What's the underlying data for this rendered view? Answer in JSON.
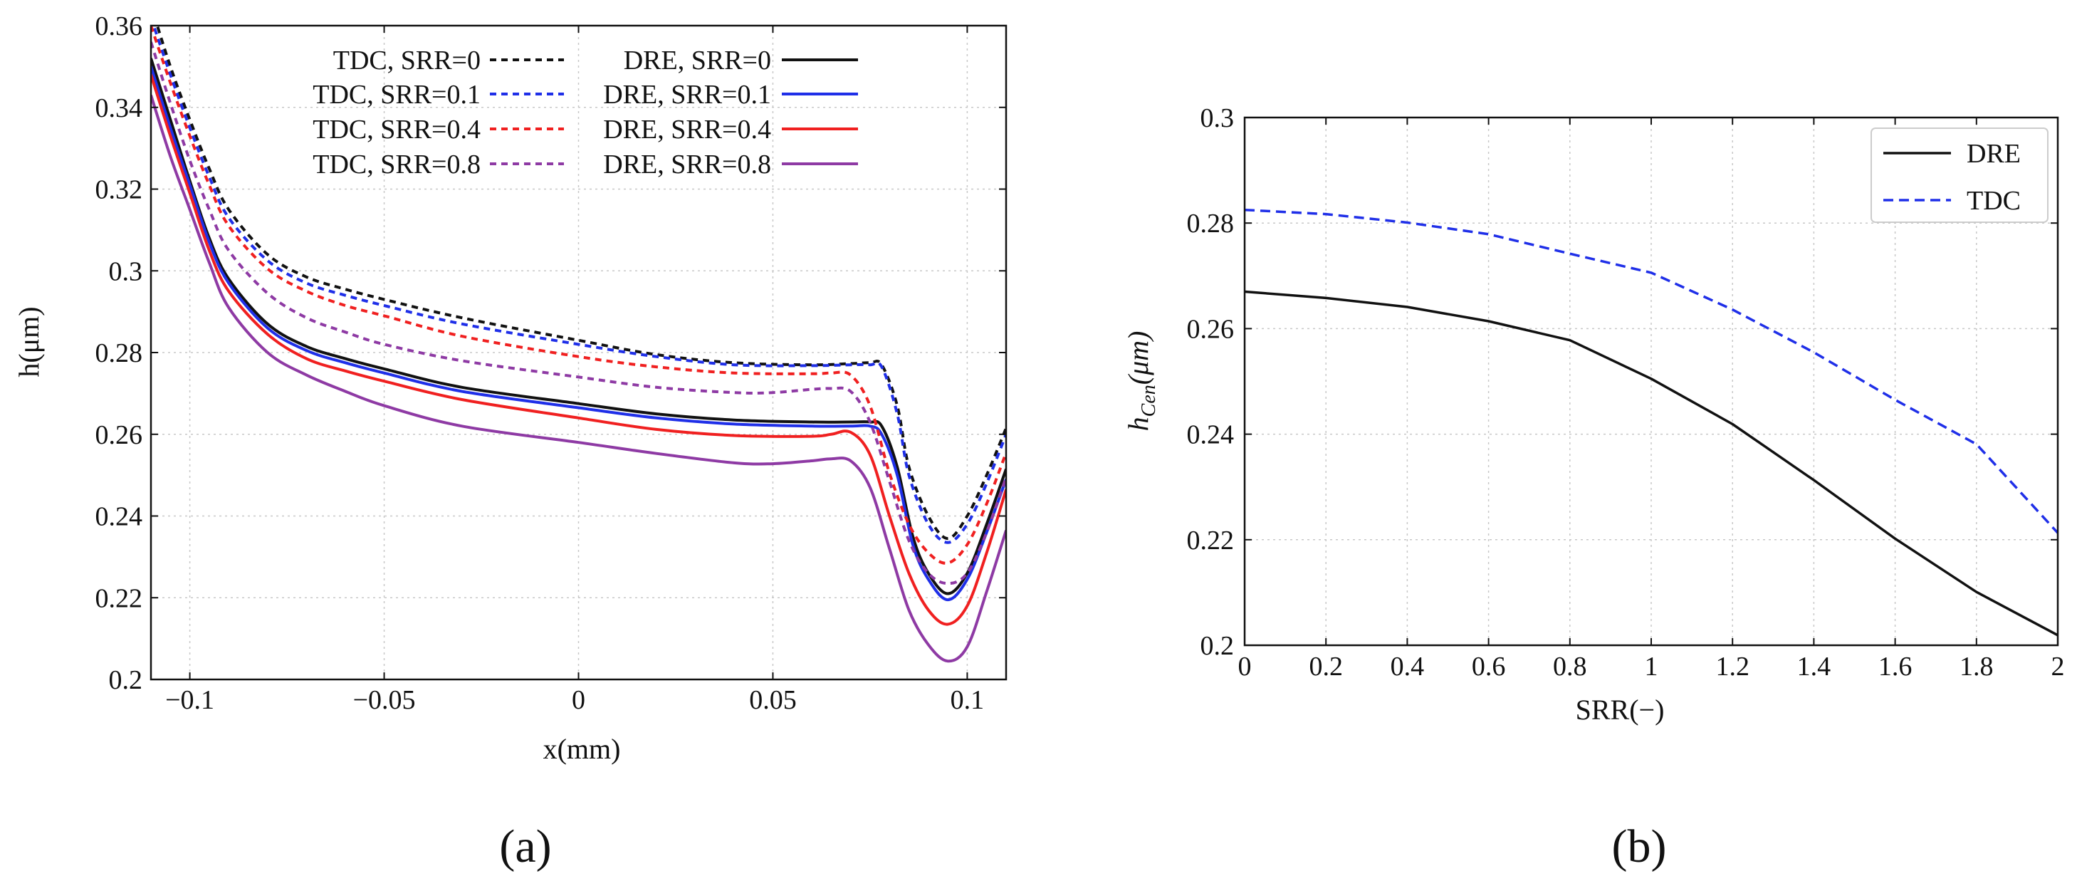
{
  "colors": {
    "black": "#111111",
    "blue": "#1f2fe8",
    "red": "#f02020",
    "purple": "#8e3aa4",
    "grid": "#c8c8c8"
  },
  "chart_data": [
    {
      "type": "line",
      "panel_label": "(a)",
      "title": "",
      "xlabel": "x(mm)",
      "ylabel": "h(μm)",
      "xlim": [
        -0.11,
        0.11
      ],
      "ylim": [
        0.2,
        0.36
      ],
      "xticks": [
        -0.1,
        -0.05,
        0,
        0.05,
        0.1
      ],
      "xtick_labels": [
        "−0.1",
        "−0.05",
        "0",
        "0.05",
        "0.1"
      ],
      "yticks": [
        0.2,
        0.22,
        0.24,
        0.26,
        0.28,
        0.3,
        0.32,
        0.34,
        0.36
      ],
      "ytick_labels": [
        "0.2",
        "0.22",
        "0.24",
        "0.26",
        "0.28",
        "0.3",
        "0.32",
        "0.34",
        "0.36"
      ],
      "grid": true,
      "legend_position": "top-right",
      "series": [
        {
          "name": "TDC, SRR=0",
          "color_key": "black",
          "dash": "dashed",
          "x": [
            -0.11,
            -0.105,
            -0.1,
            -0.095,
            -0.09,
            -0.08,
            -0.07,
            -0.06,
            -0.05,
            -0.03,
            0,
            0.02,
            0.04,
            0.06,
            0.07,
            0.075,
            0.078,
            0.082,
            0.085,
            0.09,
            0.095,
            0.1,
            0.105,
            0.11
          ],
          "y": [
            0.365,
            0.35,
            0.337,
            0.325,
            0.315,
            0.304,
            0.2985,
            0.2955,
            0.293,
            0.2885,
            0.283,
            0.2795,
            0.2775,
            0.277,
            0.2773,
            0.2775,
            0.277,
            0.267,
            0.252,
            0.24,
            0.2345,
            0.24,
            0.25,
            0.2615
          ]
        },
        {
          "name": "DRE, SRR=0",
          "color_key": "black",
          "dash": "solid",
          "x": [
            -0.11,
            -0.105,
            -0.1,
            -0.095,
            -0.09,
            -0.08,
            -0.07,
            -0.06,
            -0.05,
            -0.03,
            0,
            0.02,
            0.04,
            0.06,
            0.07,
            0.075,
            0.078,
            0.082,
            0.086,
            0.09,
            0.095,
            0.1,
            0.105,
            0.11
          ],
          "y": [
            0.352,
            0.337,
            0.322,
            0.308,
            0.298,
            0.287,
            0.2815,
            0.2785,
            0.276,
            0.2715,
            0.2675,
            0.265,
            0.2635,
            0.263,
            0.263,
            0.263,
            0.262,
            0.252,
            0.235,
            0.226,
            0.221,
            0.226,
            0.238,
            0.2515
          ]
        },
        {
          "name": "TDC, SRR=0.1",
          "color_key": "blue",
          "dash": "dashed",
          "x": [
            -0.11,
            -0.105,
            -0.1,
            -0.095,
            -0.09,
            -0.08,
            -0.07,
            -0.06,
            -0.05,
            -0.03,
            0,
            0.02,
            0.04,
            0.06,
            0.07,
            0.075,
            0.078,
            0.082,
            0.085,
            0.09,
            0.095,
            0.1,
            0.105,
            0.11
          ],
          "y": [
            0.362,
            0.348,
            0.335,
            0.323,
            0.313,
            0.3025,
            0.297,
            0.294,
            0.2915,
            0.287,
            0.282,
            0.279,
            0.277,
            0.2768,
            0.277,
            0.277,
            0.2765,
            0.265,
            0.25,
            0.238,
            0.2335,
            0.238,
            0.248,
            0.26
          ]
        },
        {
          "name": "DRE, SRR=0.1",
          "color_key": "blue",
          "dash": "solid",
          "x": [
            -0.11,
            -0.105,
            -0.1,
            -0.095,
            -0.09,
            -0.08,
            -0.07,
            -0.06,
            -0.05,
            -0.03,
            0,
            0.02,
            0.04,
            0.06,
            0.07,
            0.075,
            0.078,
            0.082,
            0.086,
            0.09,
            0.095,
            0.1,
            0.105,
            0.11
          ],
          "y": [
            0.35,
            0.335,
            0.321,
            0.307,
            0.297,
            0.286,
            0.2805,
            0.2775,
            0.275,
            0.2705,
            0.2665,
            0.264,
            0.2625,
            0.262,
            0.262,
            0.262,
            0.26,
            0.25,
            0.233,
            0.2245,
            0.2195,
            0.2245,
            0.236,
            0.249
          ]
        },
        {
          "name": "TDC, SRR=0.4",
          "color_key": "red",
          "dash": "dashed",
          "x": [
            -0.11,
            -0.105,
            -0.1,
            -0.095,
            -0.09,
            -0.08,
            -0.07,
            -0.06,
            -0.05,
            -0.03,
            0,
            0.02,
            0.04,
            0.06,
            0.065,
            0.07,
            0.075,
            0.08,
            0.085,
            0.09,
            0.095,
            0.1,
            0.105,
            0.11
          ],
          "y": [
            0.36,
            0.346,
            0.333,
            0.321,
            0.311,
            0.3005,
            0.295,
            0.2915,
            0.289,
            0.284,
            0.279,
            0.2765,
            0.275,
            0.2748,
            0.275,
            0.2745,
            0.267,
            0.2505,
            0.238,
            0.231,
            0.2285,
            0.233,
            0.243,
            0.2555
          ]
        },
        {
          "name": "DRE, SRR=0.4",
          "color_key": "red",
          "dash": "solid",
          "x": [
            -0.11,
            -0.105,
            -0.1,
            -0.095,
            -0.09,
            -0.08,
            -0.07,
            -0.06,
            -0.05,
            -0.03,
            0,
            0.02,
            0.04,
            0.06,
            0.065,
            0.07,
            0.075,
            0.08,
            0.085,
            0.09,
            0.095,
            0.1,
            0.105,
            0.11
          ],
          "y": [
            0.348,
            0.333,
            0.319,
            0.305,
            0.295,
            0.2845,
            0.2785,
            0.2755,
            0.273,
            0.2685,
            0.264,
            0.2612,
            0.2597,
            0.2595,
            0.26,
            0.2605,
            0.255,
            0.24,
            0.226,
            0.217,
            0.2135,
            0.218,
            0.231,
            0.2465
          ]
        },
        {
          "name": "TDC, SRR=0.8",
          "color_key": "purple",
          "dash": "dashed",
          "x": [
            -0.11,
            -0.105,
            -0.1,
            -0.095,
            -0.09,
            -0.08,
            -0.07,
            -0.06,
            -0.05,
            -0.03,
            0,
            0.02,
            0.04,
            0.05,
            0.06,
            0.065,
            0.07,
            0.075,
            0.08,
            0.085,
            0.09,
            0.095,
            0.1,
            0.105,
            0.11
          ],
          "y": [
            0.356,
            0.341,
            0.327,
            0.315,
            0.305,
            0.2945,
            0.2885,
            0.285,
            0.282,
            0.278,
            0.274,
            0.2715,
            0.2702,
            0.2702,
            0.271,
            0.2712,
            0.2705,
            0.263,
            0.2485,
            0.234,
            0.226,
            0.2235,
            0.226,
            0.236,
            0.2495
          ]
        },
        {
          "name": "DRE, SRR=0.8",
          "color_key": "purple",
          "dash": "solid",
          "x": [
            -0.11,
            -0.105,
            -0.1,
            -0.095,
            -0.09,
            -0.08,
            -0.07,
            -0.06,
            -0.05,
            -0.03,
            0,
            0.02,
            0.04,
            0.05,
            0.06,
            0.065,
            0.07,
            0.075,
            0.08,
            0.085,
            0.09,
            0.095,
            0.1,
            0.105,
            0.11
          ],
          "y": [
            0.343,
            0.328,
            0.315,
            0.302,
            0.291,
            0.28,
            0.2745,
            0.2705,
            0.267,
            0.262,
            0.258,
            0.2553,
            0.253,
            0.2528,
            0.2535,
            0.254,
            0.2535,
            0.247,
            0.232,
            0.217,
            0.2085,
            0.2045,
            0.208,
            0.2215,
            0.2365
          ]
        }
      ]
    },
    {
      "type": "line",
      "panel_label": "(b)",
      "title": "",
      "xlabel": "SRR(−)",
      "ylabel_main": "h",
      "ylabel_sub": "Cen",
      "ylabel_unit": "(μm)",
      "xlim": [
        0,
        2
      ],
      "ylim": [
        0.2,
        0.3
      ],
      "xticks": [
        0,
        0.2,
        0.4,
        0.6,
        0.8,
        1,
        1.2,
        1.4,
        1.6,
        1.8,
        2
      ],
      "xtick_labels": [
        "0",
        "0.2",
        "0.4",
        "0.6",
        "0.8",
        "1",
        "1.2",
        "1.4",
        "1.6",
        "1.8",
        "2"
      ],
      "yticks": [
        0.2,
        0.22,
        0.24,
        0.26,
        0.28,
        0.3
      ],
      "ytick_labels": [
        "0.2",
        "0.22",
        "0.24",
        "0.26",
        "0.28",
        "0.3"
      ],
      "grid": true,
      "legend_position": "top-right",
      "series": [
        {
          "name": "DRE",
          "color_key": "black",
          "dash": "solid",
          "x": [
            0,
            0.2,
            0.4,
            0.6,
            0.8,
            1,
            1.2,
            1.4,
            1.6,
            1.8,
            2
          ],
          "y": [
            0.267,
            0.2658,
            0.2641,
            0.2614,
            0.2578,
            0.2505,
            0.2419,
            0.2313,
            0.2202,
            0.2101,
            0.2019
          ]
        },
        {
          "name": "TDC",
          "color_key": "blue",
          "dash": "dashed",
          "x": [
            0,
            0.2,
            0.4,
            0.6,
            0.8,
            1,
            1.2,
            1.4,
            1.6,
            1.8,
            2
          ],
          "y": [
            0.2825,
            0.2817,
            0.2801,
            0.2779,
            0.2742,
            0.2706,
            0.2636,
            0.2555,
            0.2465,
            0.2381,
            0.2213
          ]
        }
      ]
    }
  ]
}
